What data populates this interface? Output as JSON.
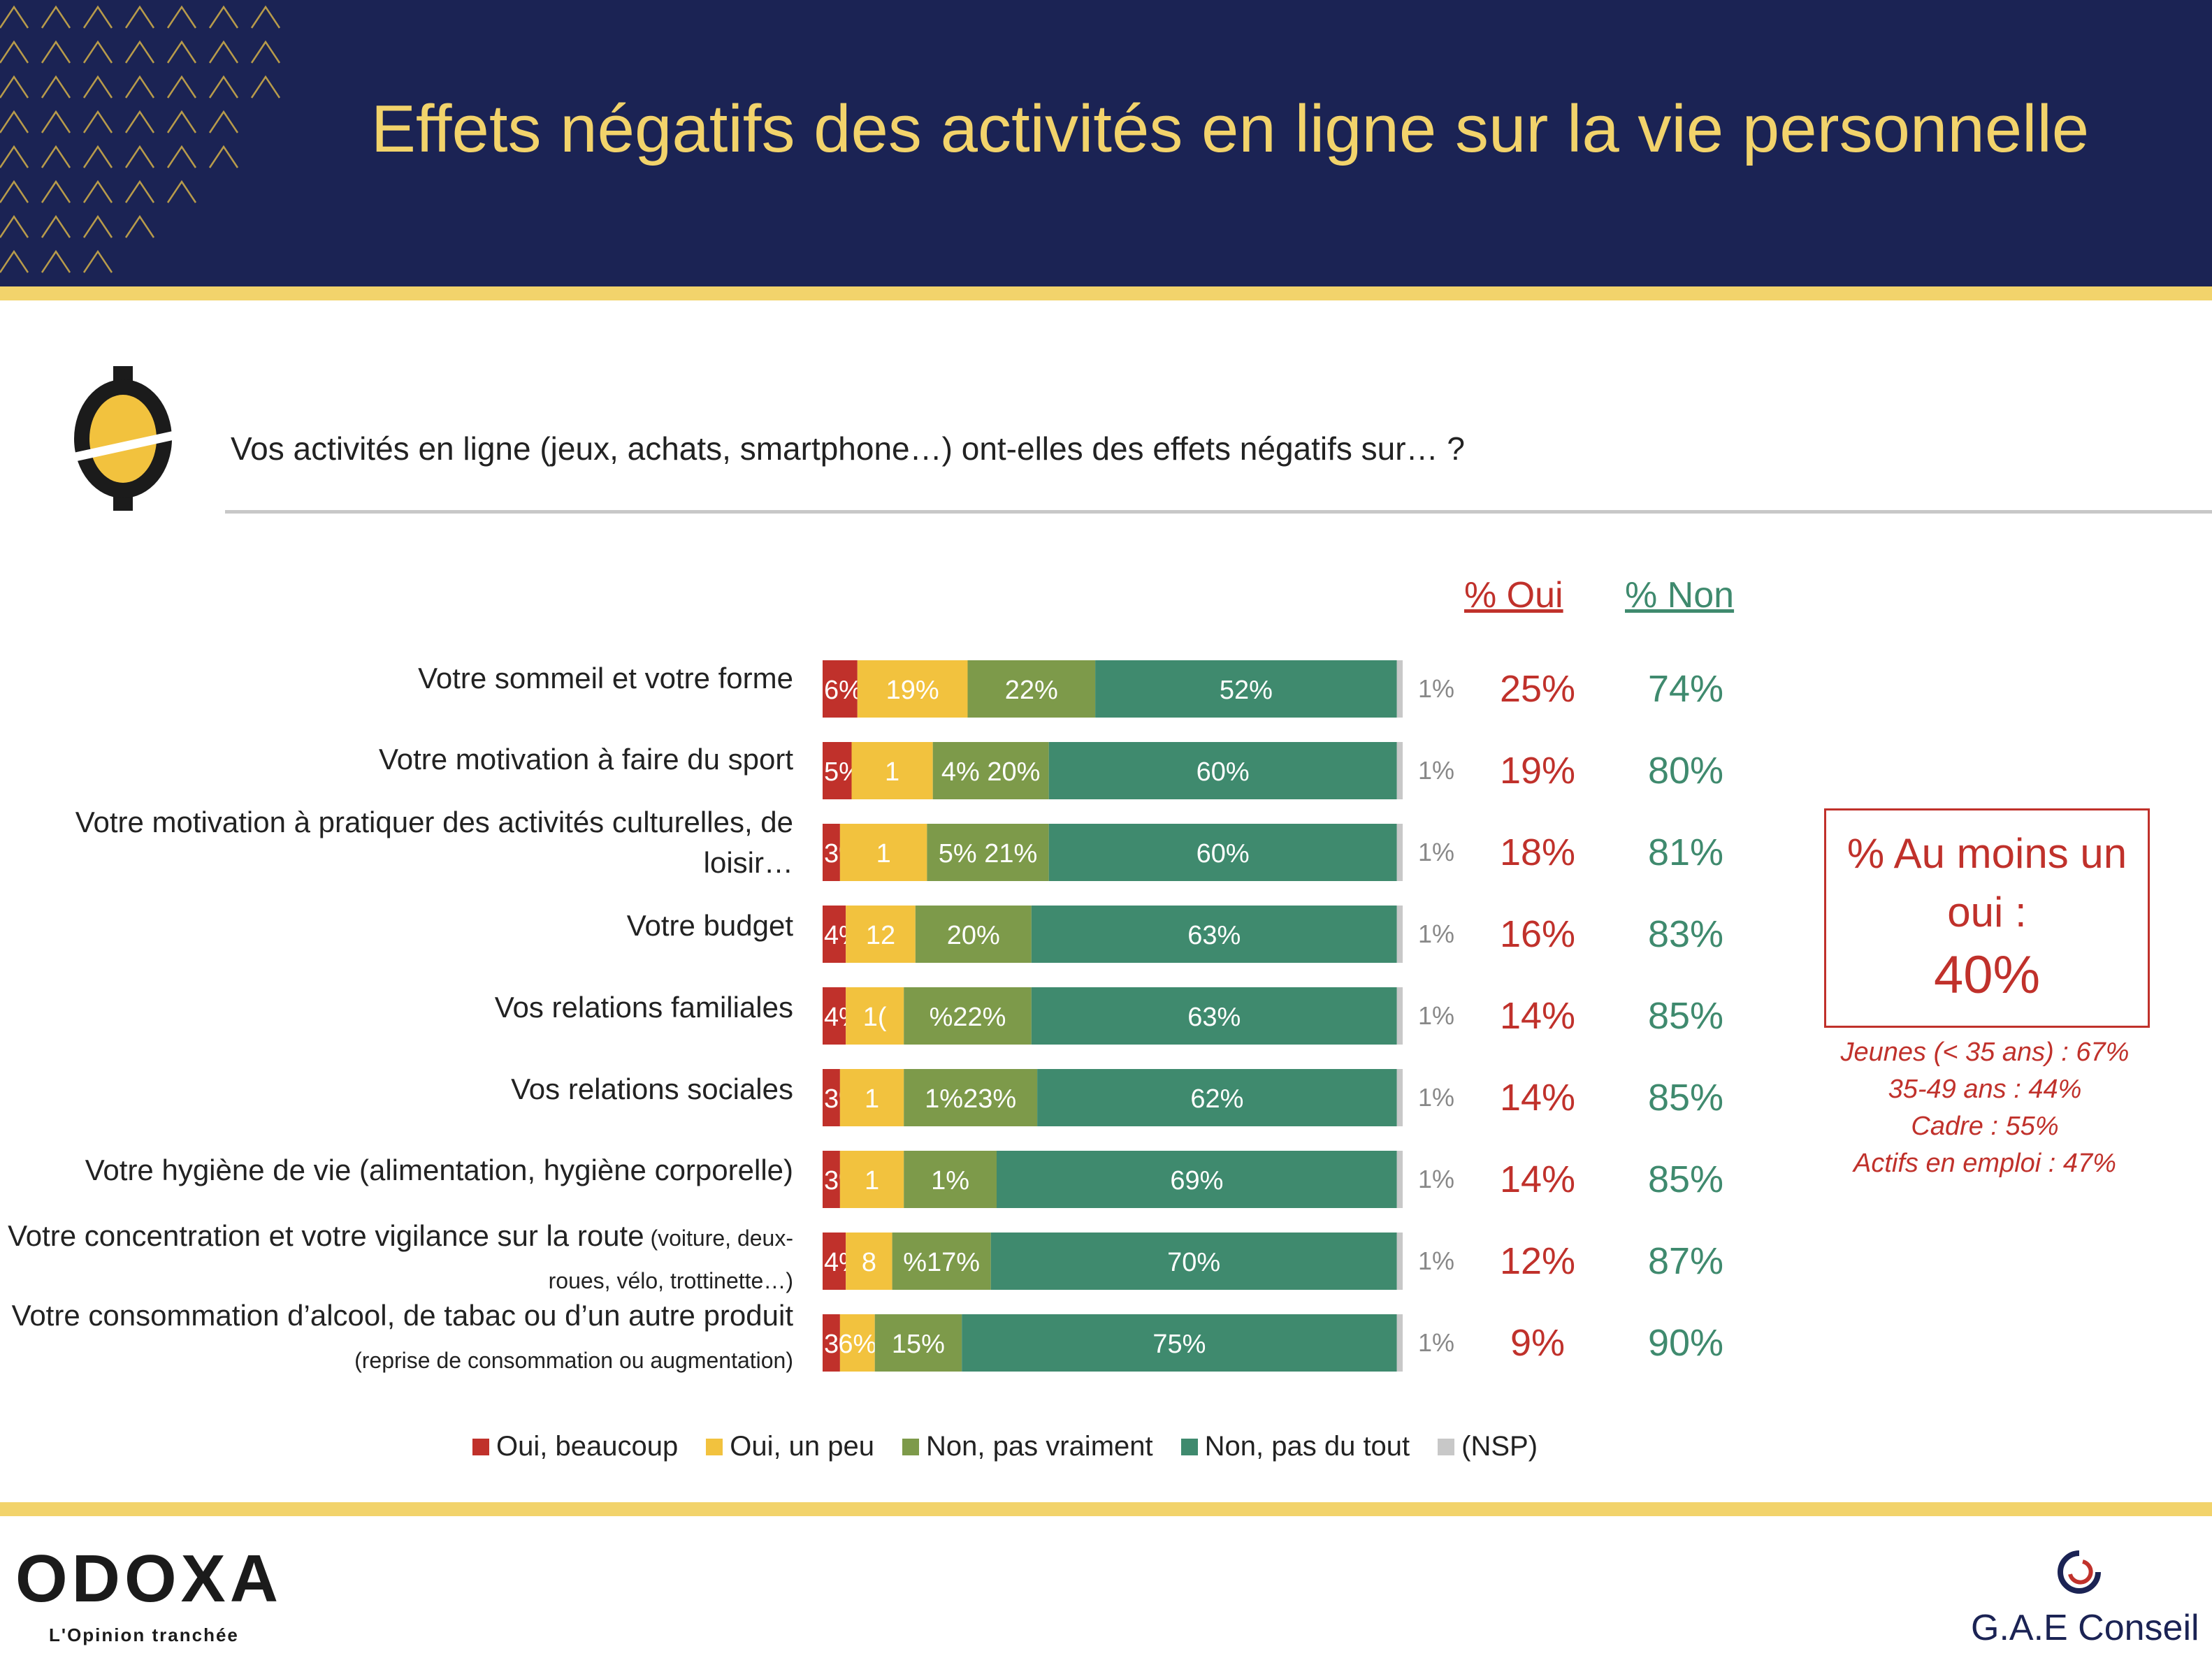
{
  "title": "Effets négatifs des activités en ligne sur la vie personnelle",
  "question": "Vos activités en ligne (jeux, achats, smartphone…) ont-elles des effets négatifs sur… ?",
  "colors": {
    "header_bg": "#1b2354",
    "gold": "#f2d36b",
    "oui_beaucoup": "#c0312b",
    "oui_un_peu": "#f2c23e",
    "non_pas_vraiment": "#7d9a4a",
    "non_pas_du_tout": "#3f8a6e",
    "nsp": "#c8c8c8"
  },
  "col_headers": {
    "oui": "% Oui",
    "non": "% Non"
  },
  "summary": {
    "label": "% Au moins un oui :",
    "value": "40%",
    "details": [
      "Jeunes (< 35 ans) : 67%",
      "35-49 ans : 44%",
      "Cadre : 55%",
      "Actifs en emploi : 47%"
    ]
  },
  "branding": {
    "left_logo": "ODOXA",
    "left_tagline": "L'Opinion tranchée",
    "right_logo": "G.A.E Conseil"
  },
  "chart_data": {
    "type": "bar",
    "orientation": "horizontal",
    "stacked": true,
    "categories": [
      {
        "main": "Votre sommeil et votre forme",
        "sub": ""
      },
      {
        "main": "Votre motivation à faire du sport",
        "sub": ""
      },
      {
        "main": "Votre motivation à pratiquer des activités culturelles, de loisir…",
        "sub": ""
      },
      {
        "main": "Votre budget",
        "sub": ""
      },
      {
        "main": "Vos relations familiales",
        "sub": ""
      },
      {
        "main": "Vos relations sociales",
        "sub": ""
      },
      {
        "main": "Votre hygiène de vie (alimentation, hygiène corporelle)",
        "sub": ""
      },
      {
        "main": "Votre concentration et votre vigilance sur la route",
        "sub": "(voiture, deux-roues, vélo, trottinette…)"
      },
      {
        "main": "Votre consommation d’alcool, de tabac ou d’un autre produit",
        "sub": "(reprise de consommation ou augmentation)"
      }
    ],
    "series": [
      {
        "name": "Oui, beaucoup",
        "color": "#c0312b",
        "values": [
          6,
          5,
          3,
          4,
          4,
          3,
          3,
          4,
          3
        ]
      },
      {
        "name": "Oui, un peu",
        "color": "#f2c23e",
        "values": [
          19,
          14,
          15,
          12,
          10,
          11,
          11,
          8,
          6
        ]
      },
      {
        "name": "Non, pas vraiment",
        "color": "#7d9a4a",
        "values": [
          22,
          20,
          21,
          20,
          22,
          23,
          16,
          17,
          15
        ]
      },
      {
        "name": "Non, pas du tout",
        "color": "#3f8a6e",
        "values": [
          52,
          60,
          60,
          63,
          63,
          62,
          69,
          70,
          75
        ]
      },
      {
        "name": "(NSP)",
        "color": "#c8c8c8",
        "values": [
          1,
          1,
          1,
          1,
          1,
          1,
          1,
          1,
          1
        ]
      }
    ],
    "labels": [
      [
        "6%",
        "19%",
        "22%",
        "52%",
        "1%"
      ],
      [
        "5%",
        "1",
        "4% 20%",
        "60%",
        "1%"
      ],
      [
        "3%",
        "1",
        "5% 21%",
        "60%",
        "1%"
      ],
      [
        "4%",
        "12",
        "20%",
        "63%",
        "1%"
      ],
      [
        "4%",
        "1(",
        "%22%",
        "63%",
        "1%"
      ],
      [
        "3%",
        "1",
        "1%23%",
        "62%",
        "1%"
      ],
      [
        "3%",
        "1",
        "1%",
        "69%",
        "1%"
      ],
      [
        "4%",
        "8",
        "%17%",
        "70%",
        "1%"
      ],
      [
        "3%",
        "6%",
        "15%",
        "75%",
        "1%"
      ]
    ],
    "pct_oui": [
      "25%",
      "19%",
      "18%",
      "16%",
      "14%",
      "14%",
      "14%",
      "12%",
      "9%"
    ],
    "pct_non": [
      "74%",
      "80%",
      "81%",
      "83%",
      "85%",
      "85%",
      "85%",
      "87%",
      "90%"
    ],
    "xlim": [
      0,
      100
    ]
  }
}
